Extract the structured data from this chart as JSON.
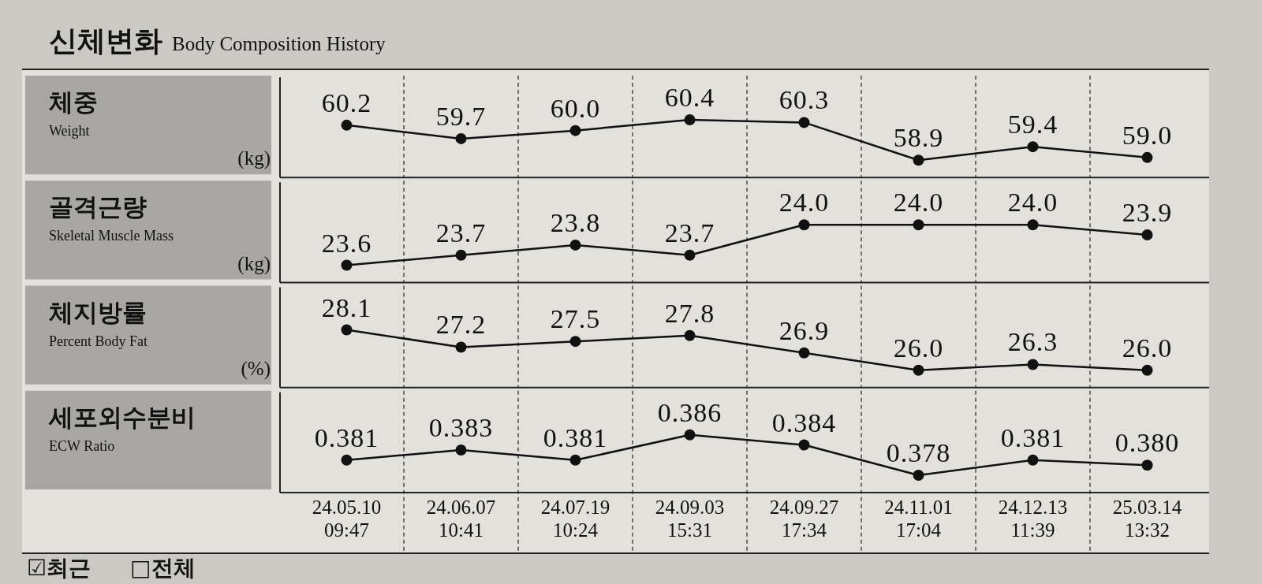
{
  "chart_data": [
    {
      "type": "other",
      "title": "신체변화",
      "subtitle": "Body Composition History"
    },
    {
      "type": "other",
      "title": "체중",
      "subtitle": "Weight"
    },
    {
      "type": "line",
      "ylabel": "(kg)",
      "categories": [
        null,
        null,
        null,
        null,
        null,
        null,
        null,
        null
      ],
      "values": [
        60.2,
        59.7,
        60.0,
        60.4,
        60.3,
        58.9,
        59.4,
        59.0
      ],
      "value_labels": [
        "60.2",
        "59.7",
        "60.0",
        "60.4",
        "60.3",
        "58.9",
        "59.4",
        "59.0"
      ],
      "color": "#111111",
      "marker": "circle",
      "grid": "x",
      "tick_labels": false
    },
    {
      "type": "other",
      "title": "골격근량",
      "subtitle": "Skeletal Muscle Mass"
    },
    {
      "type": "line",
      "ylabel": "(kg)",
      "categories": [
        null,
        null,
        null,
        null,
        null,
        null,
        null,
        null
      ],
      "values": [
        23.6,
        23.7,
        23.8,
        23.7,
        24.0,
        24.0,
        24.0,
        23.9
      ],
      "value_labels": [
        "23.6",
        "23.7",
        "23.8",
        "23.7",
        "24.0",
        "24.0",
        "24.0",
        "23.9"
      ],
      "color": "#111111",
      "marker": "circle",
      "grid": "x",
      "tick_labels": false
    },
    {
      "type": "other",
      "title": "체지방률",
      "subtitle": "Percent Body Fat"
    },
    {
      "type": "line",
      "ylabel": "(%)",
      "categories": [
        null,
        null,
        null,
        null,
        null,
        null,
        null,
        null
      ],
      "values": [
        28.1,
        27.2,
        27.5,
        27.8,
        26.9,
        26.0,
        26.3,
        26.0
      ],
      "value_labels": [
        "28.1",
        "27.2",
        "27.5",
        "27.8",
        "26.9",
        "26.0",
        "26.3",
        "26.0"
      ],
      "color": "#111111",
      "marker": "circle",
      "grid": "x",
      "tick_labels": false
    },
    {
      "type": "other",
      "title": "세포외수분비",
      "subtitle": "ECW Ratio"
    },
    {
      "type": "line",
      "categories": [
        "24.05.10\n09:47",
        "24.06.07\n10:41",
        "24.07.19\n10:24",
        "24.09.03\n15:31",
        "24.09.27\n17:34",
        "24.11.01\n17:04",
        "24.12.13\n11:39",
        "25.03.14\n13:32"
      ],
      "values": [
        0.381,
        0.383,
        0.381,
        0.386,
        0.384,
        0.378,
        0.381,
        0.38
      ],
      "value_labels": [
        "0.381",
        "0.383",
        "0.381",
        "0.386",
        "0.384",
        "0.378",
        "0.381",
        "0.380"
      ],
      "color": "#111111",
      "marker": "circle",
      "grid": "x",
      "tick_labels": "x",
      "annotations": [
        "☑최근",
        "□전체"
      ]
    }
  ]
}
